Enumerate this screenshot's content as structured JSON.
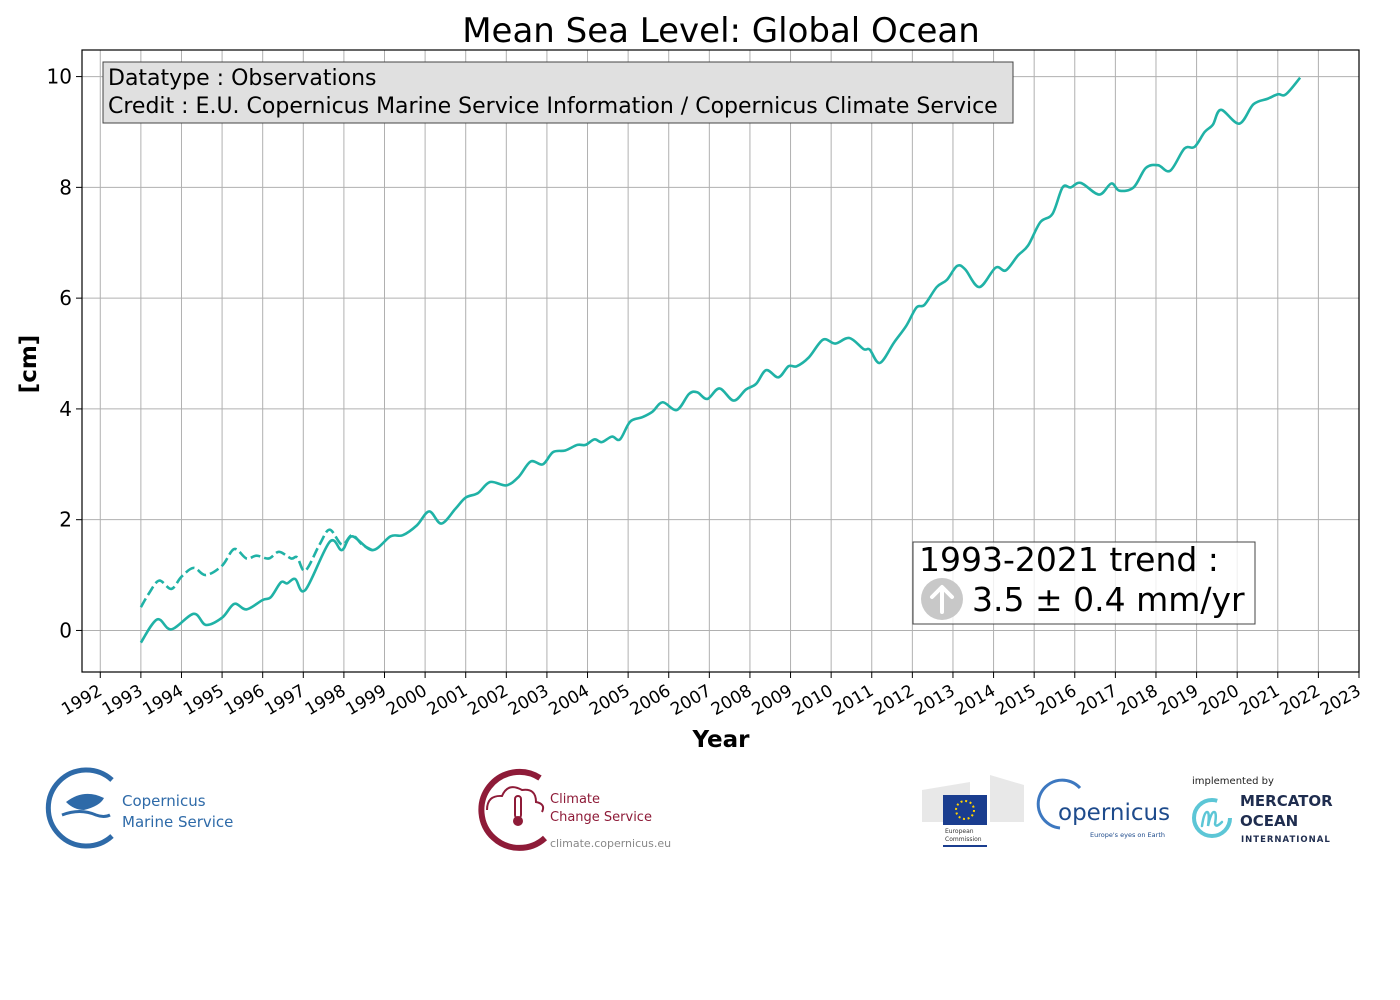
{
  "chart_data": {
    "type": "line",
    "title": "Mean Sea Level: Global Ocean",
    "xlabel": "Year",
    "ylabel": "[cm]",
    "xlim": [
      1991.55,
      2023
    ],
    "ylim": [
      -0.75,
      10.48
    ],
    "grid": true,
    "line_color": "#20b2a6",
    "x_ticks": [
      1992,
      1993,
      1994,
      1995,
      1996,
      1997,
      1998,
      1999,
      2000,
      2001,
      2002,
      2003,
      2004,
      2005,
      2006,
      2007,
      2008,
      2009,
      2010,
      2011,
      2012,
      2013,
      2014,
      2015,
      2016,
      2017,
      2018,
      2019,
      2020,
      2021,
      2022,
      2023
    ],
    "y_ticks": [
      0,
      2,
      4,
      6,
      8,
      10
    ],
    "series": [
      {
        "style": "solid",
        "points": [
          [
            1993.0,
            -0.22
          ],
          [
            1993.4,
            0.2
          ],
          [
            1993.75,
            0.02
          ],
          [
            1994.3,
            0.3
          ],
          [
            1994.6,
            0.1
          ],
          [
            1995.0,
            0.23
          ],
          [
            1995.3,
            0.48
          ],
          [
            1995.6,
            0.38
          ],
          [
            1996.0,
            0.55
          ],
          [
            1996.2,
            0.6
          ],
          [
            1996.45,
            0.87
          ],
          [
            1996.6,
            0.85
          ],
          [
            1996.8,
            0.93
          ],
          [
            1997.05,
            0.73
          ],
          [
            1997.65,
            1.6
          ],
          [
            1997.95,
            1.45
          ],
          [
            1998.2,
            1.7
          ],
          [
            1998.7,
            1.45
          ],
          [
            1999.15,
            1.7
          ],
          [
            1999.45,
            1.72
          ],
          [
            1999.8,
            1.9
          ],
          [
            2000.1,
            2.15
          ],
          [
            2000.4,
            1.93
          ],
          [
            2000.75,
            2.2
          ],
          [
            2001.0,
            2.4
          ],
          [
            2001.3,
            2.48
          ],
          [
            2001.6,
            2.68
          ],
          [
            2002.0,
            2.62
          ],
          [
            2002.3,
            2.77
          ],
          [
            2002.6,
            3.05
          ],
          [
            2002.9,
            3.0
          ],
          [
            2003.15,
            3.22
          ],
          [
            2003.45,
            3.25
          ],
          [
            2003.75,
            3.35
          ],
          [
            2003.95,
            3.35
          ],
          [
            2004.17,
            3.45
          ],
          [
            2004.35,
            3.4
          ],
          [
            2004.6,
            3.5
          ],
          [
            2004.8,
            3.45
          ],
          [
            2005.05,
            3.77
          ],
          [
            2005.35,
            3.85
          ],
          [
            2005.6,
            3.95
          ],
          [
            2005.85,
            4.12
          ],
          [
            2006.2,
            3.98
          ],
          [
            2006.5,
            4.27
          ],
          [
            2006.7,
            4.3
          ],
          [
            2006.95,
            4.18
          ],
          [
            2007.25,
            4.37
          ],
          [
            2007.6,
            4.15
          ],
          [
            2007.9,
            4.35
          ],
          [
            2008.15,
            4.45
          ],
          [
            2008.4,
            4.7
          ],
          [
            2008.7,
            4.57
          ],
          [
            2008.95,
            4.77
          ],
          [
            2009.15,
            4.77
          ],
          [
            2009.45,
            4.93
          ],
          [
            2009.8,
            5.25
          ],
          [
            2010.1,
            5.18
          ],
          [
            2010.45,
            5.28
          ],
          [
            2010.8,
            5.08
          ],
          [
            2010.95,
            5.07
          ],
          [
            2011.2,
            4.83
          ],
          [
            2011.55,
            5.2
          ],
          [
            2011.85,
            5.5
          ],
          [
            2012.1,
            5.83
          ],
          [
            2012.3,
            5.88
          ],
          [
            2012.6,
            6.2
          ],
          [
            2012.85,
            6.33
          ],
          [
            2013.1,
            6.58
          ],
          [
            2013.3,
            6.52
          ],
          [
            2013.65,
            6.2
          ],
          [
            2014.05,
            6.55
          ],
          [
            2014.3,
            6.5
          ],
          [
            2014.6,
            6.77
          ],
          [
            2014.85,
            6.95
          ],
          [
            2015.15,
            7.37
          ],
          [
            2015.45,
            7.52
          ],
          [
            2015.7,
            8.0
          ],
          [
            2015.9,
            8.0
          ],
          [
            2016.15,
            8.08
          ],
          [
            2016.6,
            7.87
          ],
          [
            2016.9,
            8.07
          ],
          [
            2017.1,
            7.94
          ],
          [
            2017.45,
            8.0
          ],
          [
            2017.75,
            8.35
          ],
          [
            2018.05,
            8.4
          ],
          [
            2018.35,
            8.3
          ],
          [
            2018.7,
            8.7
          ],
          [
            2018.95,
            8.73
          ],
          [
            2019.2,
            9.0
          ],
          [
            2019.4,
            9.13
          ],
          [
            2019.6,
            9.4
          ],
          [
            2020.05,
            9.15
          ],
          [
            2020.4,
            9.5
          ],
          [
            2020.75,
            9.6
          ],
          [
            2021.0,
            9.68
          ],
          [
            2021.2,
            9.68
          ],
          [
            2021.55,
            9.98
          ]
        ]
      },
      {
        "style": "dashed",
        "points": [
          [
            1993.0,
            0.42
          ],
          [
            1993.2,
            0.67
          ],
          [
            1993.45,
            0.9
          ],
          [
            1993.75,
            0.75
          ],
          [
            1994.0,
            0.97
          ],
          [
            1994.3,
            1.13
          ],
          [
            1994.6,
            1.0
          ],
          [
            1995.0,
            1.17
          ],
          [
            1995.3,
            1.47
          ],
          [
            1995.6,
            1.3
          ],
          [
            1995.85,
            1.35
          ],
          [
            1996.15,
            1.3
          ],
          [
            1996.4,
            1.42
          ],
          [
            1996.7,
            1.3
          ],
          [
            1996.85,
            1.32
          ],
          [
            1997.05,
            1.08
          ],
          [
            1997.4,
            1.55
          ],
          [
            1997.65,
            1.82
          ],
          [
            1997.95,
            1.55
          ],
          [
            1998.2,
            1.72
          ],
          [
            1998.45,
            1.55
          ],
          [
            1998.7,
            1.45
          ]
        ]
      }
    ],
    "info_box": {
      "line1": "Datatype : Observations",
      "line2": "Credit : E.U. Copernicus Marine Service Information / Copernicus Climate Service"
    },
    "trend_box": {
      "line1": "1993-2021 trend :",
      "line2": "3.5 ± 0.4 mm/yr",
      "icon": "arrow-up-circle-icon"
    }
  },
  "logos": {
    "cmems": {
      "line1": "Copernicus",
      "line2": "Marine Service",
      "color": "#2e6aa8"
    },
    "c3s": {
      "line1": "Climate",
      "line2": "Change Service",
      "url": "climate.copernicus.eu",
      "color": "#8e1b38"
    },
    "ec": {
      "line1": "European",
      "line2": "Commission"
    },
    "copernicus": {
      "name": "opernicus",
      "tagline": "Europe's eyes on Earth"
    },
    "mercator": {
      "prefix": "implemented by",
      "line1": "MERCATOR",
      "line2": "OCEAN",
      "line3": "INTERNATIONAL"
    }
  }
}
